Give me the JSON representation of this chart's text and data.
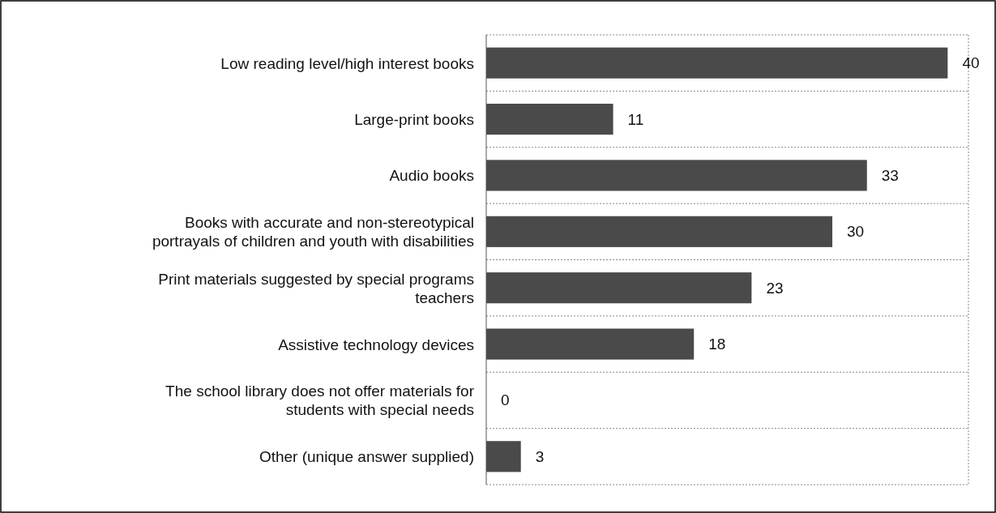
{
  "chart_data": {
    "type": "bar",
    "orientation": "horizontal",
    "categories": [
      "Low reading level/high interest books",
      "Large-print books",
      "Audio books",
      "Books with accurate and non-stereotypical portrayals of children and youth with disabilities",
      "Print materials suggested by special programs teachers",
      "Assistive technology devices",
      "The school library does not offer materials for students with special needs",
      "Other (unique answer supplied)"
    ],
    "values": [
      40,
      11,
      33,
      30,
      23,
      18,
      0,
      3
    ],
    "color": "#4a4a4a",
    "data_labels": true,
    "grid": "y",
    "tick_labels": "y"
  }
}
